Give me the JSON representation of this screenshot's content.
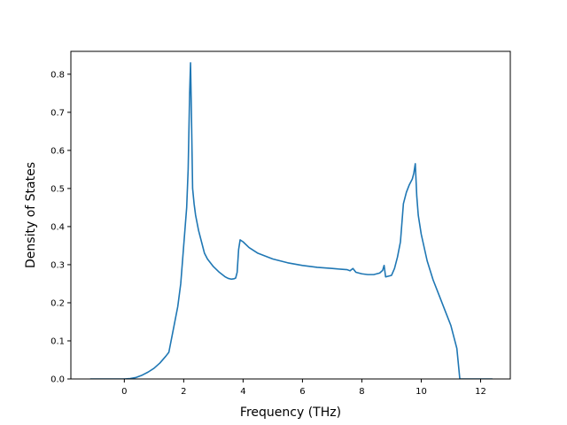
{
  "chart_data": {
    "type": "line",
    "title": "",
    "xlabel": "Frequency (THz)",
    "ylabel": "Density of States",
    "xlim": [
      -1.8,
      13.0
    ],
    "ylim": [
      0.0,
      0.86
    ],
    "xticks": [
      0,
      2,
      4,
      6,
      8,
      10,
      12
    ],
    "yticks": [
      0.0,
      0.1,
      0.2,
      0.3,
      0.4,
      0.5,
      0.6,
      0.7,
      0.8
    ],
    "ytick_labels": [
      "0.0",
      "0.1",
      "0.2",
      "0.3",
      "0.4",
      "0.5",
      "0.6",
      "0.7",
      "0.8"
    ],
    "grid": false,
    "color": "#1f77b4",
    "series": [
      {
        "x": [
          -1.15,
          -0.5,
          0.0,
          0.2,
          0.4,
          0.6,
          0.8,
          1.0,
          1.2,
          1.4,
          1.5,
          1.6,
          1.7,
          1.8,
          1.9,
          2.0,
          2.05,
          2.1,
          2.15,
          2.2,
          2.23,
          2.26,
          2.3,
          2.35,
          2.4,
          2.5,
          2.6,
          2.7,
          2.8,
          3.0,
          3.2,
          3.4,
          3.5,
          3.6,
          3.7,
          3.75,
          3.8,
          3.85,
          3.9,
          4.0,
          4.2,
          4.5,
          5.0,
          5.5,
          6.0,
          6.5,
          7.0,
          7.3,
          7.5,
          7.6,
          7.7,
          7.8,
          8.0,
          8.2,
          8.4,
          8.5,
          8.6,
          8.7,
          8.75,
          8.8,
          8.9,
          9.0,
          9.1,
          9.2,
          9.3,
          9.4,
          9.5,
          9.6,
          9.7,
          9.75,
          9.8,
          9.85,
          9.9,
          10.0,
          10.2,
          10.4,
          10.6,
          10.8,
          11.0,
          11.1,
          11.2,
          11.3,
          11.5,
          12.0,
          12.4
        ],
        "y": [
          0.0,
          0.0,
          0.0,
          0.001,
          0.004,
          0.01,
          0.018,
          0.028,
          0.042,
          0.06,
          0.07,
          0.11,
          0.15,
          0.19,
          0.25,
          0.35,
          0.4,
          0.45,
          0.55,
          0.75,
          0.83,
          0.7,
          0.5,
          0.46,
          0.43,
          0.39,
          0.36,
          0.33,
          0.315,
          0.295,
          0.28,
          0.268,
          0.264,
          0.262,
          0.263,
          0.265,
          0.28,
          0.34,
          0.365,
          0.36,
          0.345,
          0.33,
          0.315,
          0.305,
          0.298,
          0.293,
          0.29,
          0.288,
          0.287,
          0.284,
          0.29,
          0.28,
          0.276,
          0.274,
          0.274,
          0.276,
          0.278,
          0.285,
          0.298,
          0.268,
          0.27,
          0.272,
          0.29,
          0.32,
          0.36,
          0.46,
          0.49,
          0.51,
          0.525,
          0.54,
          0.565,
          0.48,
          0.43,
          0.38,
          0.31,
          0.26,
          0.22,
          0.18,
          0.14,
          0.11,
          0.08,
          0.0,
          0.0,
          0.0,
          0.0
        ]
      }
    ]
  }
}
